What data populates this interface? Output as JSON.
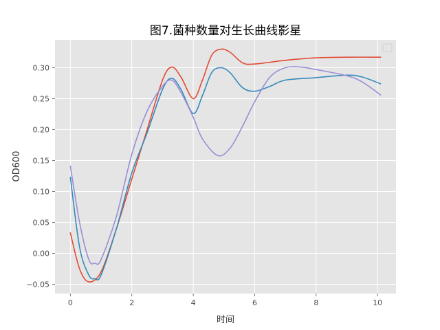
{
  "chart_data": {
    "type": "line",
    "title": "图7.菌种数量对生长曲线影星",
    "xlabel": "时间",
    "ylabel": "OD600",
    "xlim": [
      -0.5,
      10.6
    ],
    "ylim": [
      -0.065,
      0.345
    ],
    "xticks": [
      0,
      2,
      4,
      6,
      8,
      10
    ],
    "yticks": [
      -0.05,
      0.0,
      0.05,
      0.1,
      0.15,
      0.2,
      0.25,
      0.3
    ],
    "ytick_labels": [
      "−0.05",
      "0.00",
      "0.05",
      "0.10",
      "0.15",
      "0.20",
      "0.25",
      "0.30"
    ],
    "grid": true,
    "legend": "top-right (empty)",
    "colors": {
      "background": "#e5e5e5",
      "grid": "#ffffff",
      "red": "#e24a33",
      "blue": "#348abd",
      "purple": "#988ed5"
    },
    "series": [
      {
        "color": "#e24a33",
        "points": [
          [
            0,
            0.033
          ],
          [
            0.3,
            -0.025
          ],
          [
            0.6,
            -0.046
          ],
          [
            1.0,
            -0.03
          ],
          [
            1.5,
            0.04
          ],
          [
            2.0,
            0.12
          ],
          [
            2.5,
            0.2
          ],
          [
            3.0,
            0.28
          ],
          [
            3.3,
            0.301
          ],
          [
            3.6,
            0.285
          ],
          [
            4.0,
            0.25
          ],
          [
            4.3,
            0.28
          ],
          [
            4.6,
            0.32
          ],
          [
            4.9,
            0.33
          ],
          [
            5.2,
            0.325
          ],
          [
            5.6,
            0.308
          ],
          [
            6.0,
            0.306
          ],
          [
            7.0,
            0.312
          ],
          [
            8.0,
            0.316
          ],
          [
            9.0,
            0.317
          ],
          [
            10.1,
            0.317
          ]
        ]
      },
      {
        "color": "#348abd",
        "points": [
          [
            0,
            0.123
          ],
          [
            0.3,
            0.01
          ],
          [
            0.6,
            -0.035
          ],
          [
            0.8,
            -0.041
          ],
          [
            1.0,
            -0.035
          ],
          [
            1.5,
            0.04
          ],
          [
            2.0,
            0.13
          ],
          [
            2.5,
            0.195
          ],
          [
            3.0,
            0.265
          ],
          [
            3.3,
            0.283
          ],
          [
            3.6,
            0.265
          ],
          [
            4.0,
            0.226
          ],
          [
            4.3,
            0.255
          ],
          [
            4.6,
            0.292
          ],
          [
            4.9,
            0.3
          ],
          [
            5.2,
            0.292
          ],
          [
            5.6,
            0.268
          ],
          [
            6.0,
            0.262
          ],
          [
            6.5,
            0.27
          ],
          [
            7.0,
            0.28
          ],
          [
            8.0,
            0.284
          ],
          [
            9.0,
            0.288
          ],
          [
            9.5,
            0.285
          ],
          [
            10.1,
            0.274
          ]
        ]
      },
      {
        "color": "#988ed5",
        "points": [
          [
            0,
            0.141
          ],
          [
            0.3,
            0.05
          ],
          [
            0.6,
            -0.01
          ],
          [
            0.8,
            -0.016
          ],
          [
            1.0,
            -0.01
          ],
          [
            1.5,
            0.06
          ],
          [
            2.0,
            0.16
          ],
          [
            2.5,
            0.23
          ],
          [
            3.0,
            0.27
          ],
          [
            3.3,
            0.28
          ],
          [
            3.6,
            0.26
          ],
          [
            4.0,
            0.22
          ],
          [
            4.3,
            0.185
          ],
          [
            4.8,
            0.158
          ],
          [
            5.2,
            0.17
          ],
          [
            5.6,
            0.205
          ],
          [
            6.0,
            0.245
          ],
          [
            6.5,
            0.285
          ],
          [
            7.0,
            0.3
          ],
          [
            7.5,
            0.301
          ],
          [
            8.0,
            0.297
          ],
          [
            9.0,
            0.287
          ],
          [
            9.5,
            0.277
          ],
          [
            10.1,
            0.256
          ]
        ]
      }
    ]
  }
}
